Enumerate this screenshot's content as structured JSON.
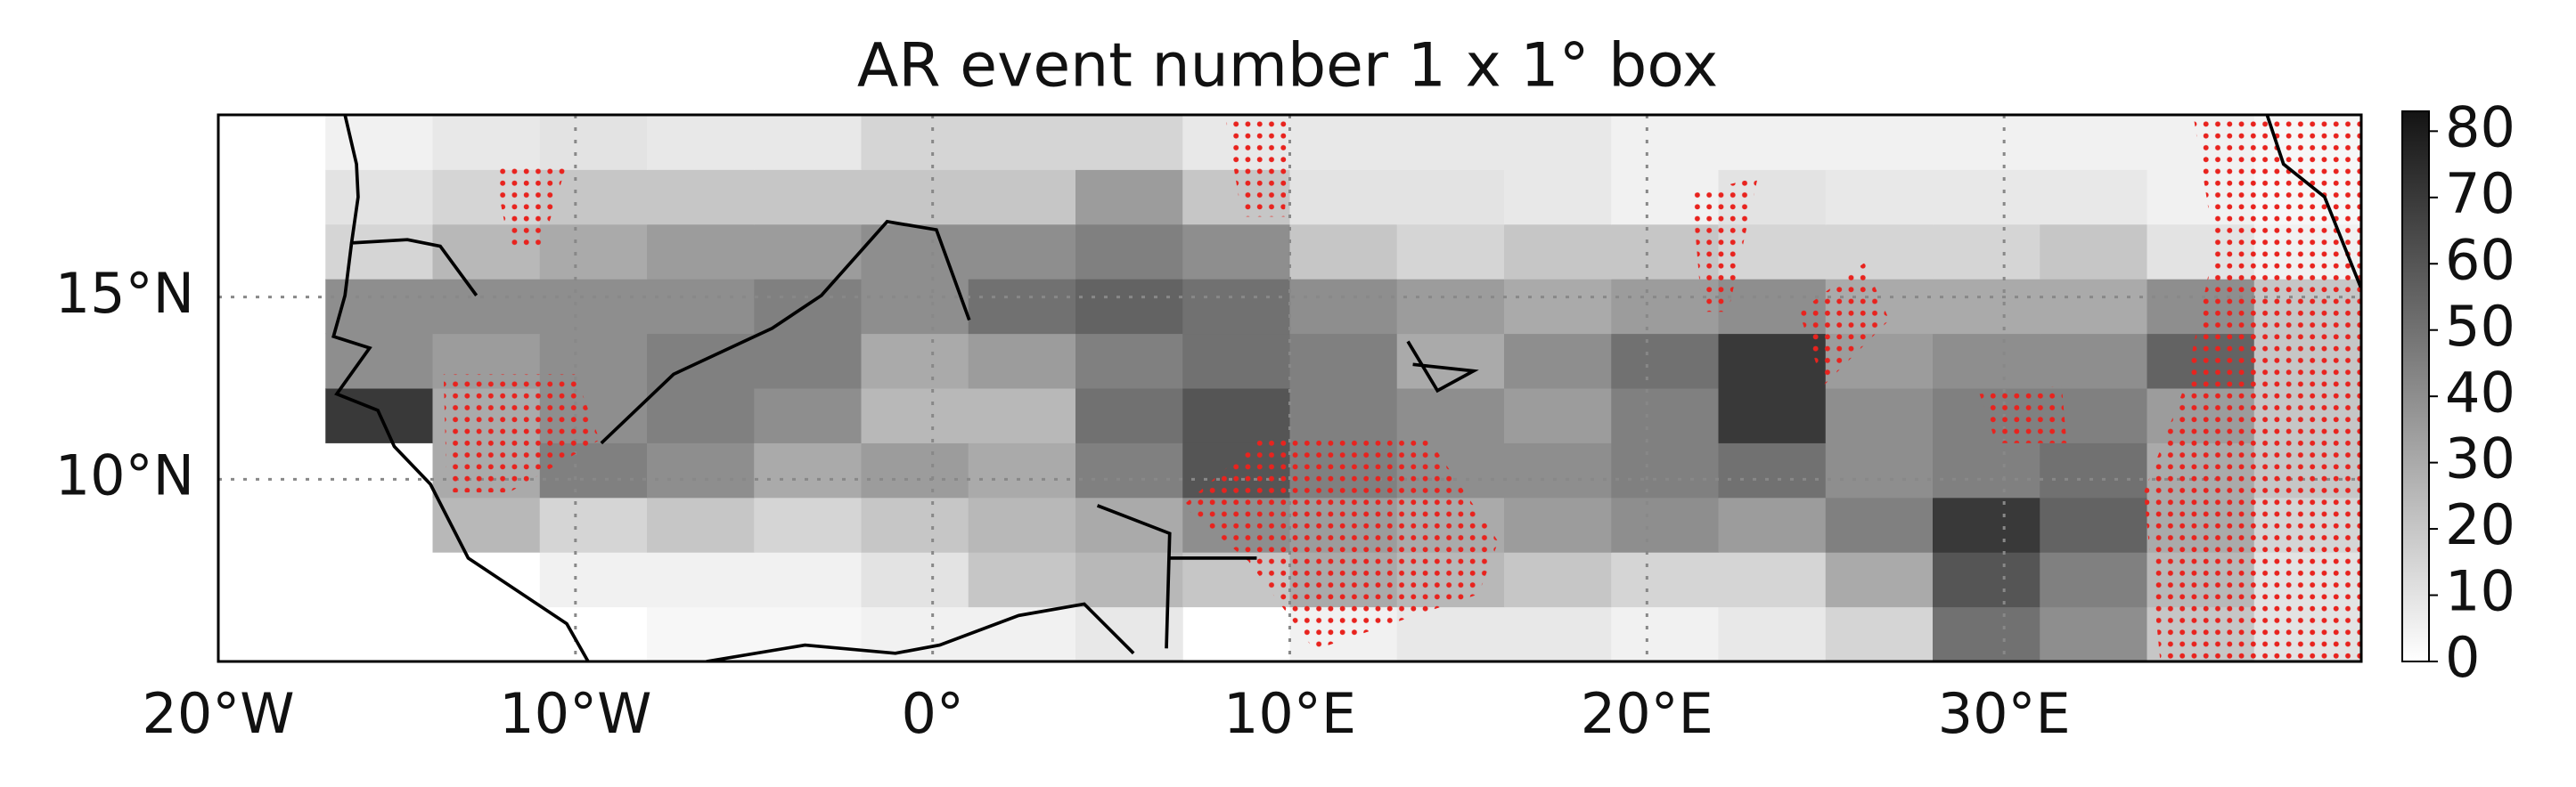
{
  "chart_data": {
    "type": "heatmap",
    "title": "AR event number 1 x 1° box",
    "xlim": [
      -20,
      40
    ],
    "ylim": [
      5,
      20
    ],
    "xticks": [
      {
        "value": -20,
        "label": "20°W"
      },
      {
        "value": -10,
        "label": "10°W"
      },
      {
        "value": 0,
        "label": "0°"
      },
      {
        "value": 10,
        "label": "10°E"
      },
      {
        "value": 20,
        "label": "20°E"
      },
      {
        "value": 30,
        "label": "30°E"
      }
    ],
    "yticks": [
      {
        "value": 10,
        "label": "10°N"
      },
      {
        "value": 15,
        "label": "15°N"
      }
    ],
    "grid": true,
    "x_edges": [
      -20,
      -17,
      -14,
      -11,
      -8,
      -5,
      -2,
      1,
      4,
      7,
      10,
      13,
      16,
      19,
      22,
      25,
      28,
      31,
      34,
      37,
      40
    ],
    "y_edges": [
      5,
      6.5,
      8,
      9.5,
      11,
      12.5,
      14,
      15.5,
      17,
      18.5,
      20
    ],
    "values": [
      [
        null,
        null,
        null,
        null,
        3,
        3,
        5,
        5,
        8,
        null,
        5,
        8,
        8,
        5,
        8,
        15,
        50,
        40,
        20,
        10
      ],
      [
        null,
        null,
        null,
        5,
        5,
        5,
        10,
        20,
        25,
        20,
        30,
        25,
        20,
        15,
        15,
        30,
        60,
        45,
        25,
        10
      ],
      [
        null,
        null,
        25,
        15,
        20,
        15,
        20,
        25,
        30,
        40,
        35,
        30,
        35,
        40,
        35,
        45,
        70,
        55,
        30,
        15
      ],
      [
        null,
        null,
        30,
        45,
        40,
        30,
        35,
        30,
        45,
        60,
        45,
        40,
        40,
        45,
        50,
        40,
        45,
        50,
        30,
        20
      ],
      [
        null,
        70,
        30,
        40,
        45,
        40,
        25,
        25,
        50,
        60,
        45,
        40,
        35,
        45,
        70,
        40,
        45,
        45,
        35,
        20
      ],
      [
        null,
        40,
        35,
        40,
        45,
        45,
        30,
        35,
        45,
        50,
        45,
        30,
        40,
        50,
        70,
        35,
        40,
        40,
        55,
        20
      ],
      [
        null,
        40,
        40,
        40,
        40,
        45,
        40,
        50,
        55,
        50,
        40,
        35,
        30,
        35,
        40,
        30,
        30,
        30,
        40,
        20
      ],
      [
        null,
        15,
        25,
        30,
        35,
        35,
        40,
        40,
        45,
        40,
        20,
        15,
        20,
        20,
        15,
        15,
        15,
        20,
        10,
        5
      ],
      [
        null,
        10,
        15,
        20,
        20,
        20,
        20,
        20,
        35,
        20,
        10,
        10,
        8,
        5,
        10,
        8,
        8,
        8,
        5,
        3
      ],
      [
        null,
        5,
        8,
        10,
        8,
        8,
        15,
        15,
        15,
        8,
        8,
        8,
        8,
        5,
        5,
        5,
        5,
        5,
        5,
        3
      ]
    ],
    "colorbar": {
      "lim": [
        0,
        83
      ],
      "ticks": [
        0,
        10,
        20,
        30,
        40,
        50,
        60,
        70,
        80
      ]
    }
  }
}
